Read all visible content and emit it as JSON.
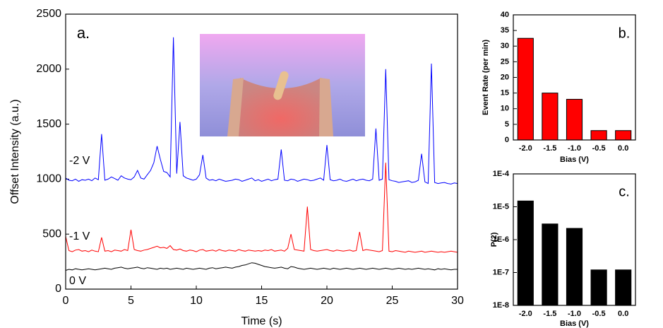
{
  "chart_data": [
    {
      "type": "line",
      "panel_label": "a.",
      "xlabel": "Time (s)",
      "ylabel": "Offset Intensity (a.u.)",
      "xlim": [
        0,
        30
      ],
      "ylim": [
        0,
        2500
      ],
      "xticks": [
        0,
        5,
        10,
        15,
        20,
        25,
        30
      ],
      "yticks": [
        0,
        500,
        1000,
        1500,
        2000,
        2500
      ],
      "annotations": [
        "-2 V",
        "-1 V",
        "0 V"
      ],
      "x": [
        0,
        0.25,
        0.5,
        0.75,
        1,
        1.25,
        1.5,
        1.75,
        2,
        2.25,
        2.5,
        2.75,
        3,
        3.25,
        3.5,
        3.75,
        4,
        4.25,
        4.5,
        4.75,
        5,
        5.25,
        5.5,
        5.75,
        6,
        6.25,
        6.5,
        6.75,
        7,
        7.25,
        7.5,
        7.75,
        8,
        8.25,
        8.5,
        8.75,
        9,
        9.25,
        9.5,
        9.75,
        10,
        10.25,
        10.5,
        10.75,
        11,
        11.25,
        11.5,
        11.75,
        12,
        12.25,
        12.5,
        12.75,
        13,
        13.25,
        13.5,
        13.75,
        14,
        14.25,
        14.5,
        14.75,
        15,
        15.25,
        15.5,
        15.75,
        16,
        16.25,
        16.5,
        16.75,
        17,
        17.25,
        17.5,
        17.75,
        18,
        18.25,
        18.5,
        18.75,
        19,
        19.25,
        19.5,
        19.75,
        20,
        20.25,
        20.5,
        20.75,
        21,
        21.25,
        21.5,
        21.75,
        22,
        22.25,
        22.5,
        22.75,
        23,
        23.25,
        23.5,
        23.75,
        24,
        24.25,
        24.5,
        24.75,
        25,
        25.25,
        25.5,
        25.75,
        26,
        26.25,
        26.5,
        26.75,
        27,
        27.25,
        27.5,
        27.75,
        28,
        28.25,
        28.5,
        28.75,
        29,
        29.25,
        29.5,
        29.75,
        30
      ],
      "series": [
        {
          "name": "-2 V",
          "color": "#0000ff",
          "values": [
            1010,
            990,
            985,
            1000,
            980,
            995,
            990,
            1000,
            985,
            1010,
            995,
            1410,
            990,
            1000,
            1020,
            1005,
            990,
            1030,
            1010,
            1000,
            995,
            1020,
            1080,
            1010,
            1000,
            1040,
            1080,
            1150,
            1300,
            1180,
            1070,
            1060,
            1020,
            2290,
            1050,
            1520,
            1030,
            1010,
            1000,
            990,
            1000,
            1040,
            1220,
            1010,
            990,
            995,
            985,
            1000,
            990,
            980,
            985,
            990,
            1000,
            995,
            980,
            990,
            1000,
            1010,
            985,
            995,
            980,
            990,
            1000,
            985,
            995,
            1000,
            1270,
            990,
            985,
            1000,
            995,
            980,
            990,
            1000,
            995,
            985,
            990,
            1000,
            1010,
            990,
            1310,
            995,
            985,
            990,
            1000,
            985,
            980,
            990,
            1000,
            985,
            995,
            1000,
            990,
            985,
            1000,
            1460,
            990,
            1000,
            2000,
            995,
            985,
            980,
            970,
            975,
            980,
            985,
            970,
            975,
            990,
            1230,
            975,
            960,
            2050,
            970,
            960,
            965,
            970,
            960,
            955,
            965,
            960
          ]
        },
        {
          "name": "-1 V",
          "color": "#ff0000",
          "values": [
            480,
            350,
            340,
            355,
            360,
            345,
            350,
            340,
            355,
            345,
            340,
            470,
            345,
            350,
            340,
            355,
            350,
            345,
            360,
            350,
            540,
            360,
            350,
            345,
            355,
            360,
            370,
            380,
            390,
            375,
            380,
            370,
            395,
            360,
            355,
            365,
            350,
            345,
            355,
            350,
            340,
            355,
            360,
            345,
            350,
            355,
            345,
            360,
            350,
            345,
            355,
            350,
            345,
            360,
            350,
            345,
            355,
            350,
            345,
            350,
            345,
            355,
            350,
            360,
            345,
            350,
            355,
            345,
            370,
            500,
            360,
            355,
            350,
            345,
            750,
            360,
            350,
            345,
            350,
            355,
            360,
            350,
            345,
            355,
            350,
            345,
            350,
            355,
            345,
            350,
            520,
            350,
            360,
            355,
            350,
            345,
            340,
            350,
            1150,
            345,
            340,
            350,
            345,
            340,
            335,
            345,
            340,
            335,
            340,
            345,
            335,
            340,
            345,
            340,
            335,
            340,
            335,
            340,
            345,
            340,
            335
          ]
        },
        {
          "name": "0 V",
          "color": "#000000",
          "values": [
            170,
            180,
            175,
            185,
            180,
            175,
            180,
            185,
            180,
            175,
            180,
            185,
            190,
            185,
            180,
            190,
            195,
            200,
            190,
            185,
            190,
            195,
            200,
            190,
            185,
            195,
            190,
            185,
            180,
            190,
            185,
            190,
            180,
            185,
            190,
            185,
            180,
            190,
            185,
            180,
            185,
            190,
            185,
            180,
            190,
            195,
            185,
            190,
            195,
            200,
            195,
            190,
            200,
            205,
            215,
            220,
            230,
            240,
            235,
            225,
            215,
            205,
            200,
            195,
            190,
            195,
            200,
            190,
            185,
            205,
            200,
            190,
            185,
            180,
            185,
            190,
            185,
            180,
            185,
            190,
            185,
            180,
            190,
            185,
            180,
            185,
            190,
            185,
            180,
            185,
            190,
            185,
            180,
            185,
            190,
            185,
            180,
            185,
            190,
            185,
            180,
            185,
            190,
            185,
            180,
            185,
            180,
            185,
            190,
            185,
            180,
            185,
            180,
            175,
            185,
            180,
            185,
            180,
            175,
            180,
            180
          ]
        }
      ]
    },
    {
      "type": "bar",
      "panel_label": "b.",
      "xlabel": "Bias (V)",
      "ylabel": "Event Rate (per min)",
      "categories": [
        "-2.0",
        "-1.5",
        "-1.0",
        "-0.5",
        "0.0"
      ],
      "values": [
        32.5,
        15,
        13,
        3,
        3
      ],
      "color": "#ff0000",
      "ylim": [
        0,
        40
      ],
      "yticks": [
        0,
        5,
        10,
        15,
        20,
        25,
        30,
        35,
        40
      ]
    },
    {
      "type": "bar",
      "panel_label": "c.",
      "xlabel": "Bias (V)",
      "ylabel": "P(2)",
      "log": true,
      "categories": [
        "-2.0",
        "-1.5",
        "-1.0",
        "-0.5",
        "0.0"
      ],
      "values": [
        1.5e-05,
        3e-06,
        2.2e-06,
        1.2e-07,
        1.2e-07
      ],
      "color": "#000000",
      "ylim": [
        1e-08,
        0.0001
      ],
      "yticks": [
        {
          "value": 1e-08,
          "label": "1E-8"
        },
        {
          "value": 1e-07,
          "label": "1E-7"
        },
        {
          "value": 1e-06,
          "label": "1E-6"
        },
        {
          "value": 1e-05,
          "label": "1E-5"
        },
        {
          "value": 0.0001,
          "label": "1E-4"
        }
      ]
    }
  ]
}
